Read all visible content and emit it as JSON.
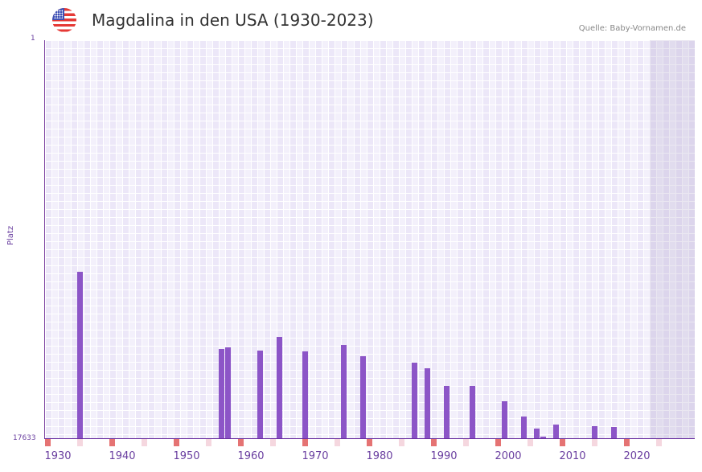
{
  "header": {
    "title": "Magdalina in den USA (1930-2023)",
    "source": "Quelle: Baby-Vornamen.de",
    "flag_icon": "us-flag-icon"
  },
  "colors": {
    "bar": "#8c55c7",
    "axis": "#6a2fa0",
    "decade_mark": "#e57373",
    "half_decade_mark": "#f5d7df",
    "grid_bg": "#f3f0fb"
  },
  "chart_data": {
    "type": "bar",
    "title": "Magdalina in den USA (1930-2023)",
    "xlabel": "",
    "ylabel": "Platz",
    "y_inverted": true,
    "ylim": [
      17633,
      1
    ],
    "yticks": [
      "1",
      "17633"
    ],
    "xticks": [
      "1930",
      "1940",
      "1950",
      "1960",
      "1970",
      "1980",
      "1990",
      "2000",
      "2010",
      "2020"
    ],
    "x_range": [
      1928,
      2028
    ],
    "grid": true,
    "categories": [
      1933,
      1955,
      1956,
      1961,
      1964,
      1968,
      1974,
      1977,
      1985,
      1987,
      1990,
      1994,
      1999,
      2002,
      2004,
      2005,
      2007,
      2013,
      2016
    ],
    "values": [
      10260,
      13679,
      13608,
      13750,
      13145,
      13786,
      13501,
      14000,
      14285,
      14534,
      15318,
      15318,
      15994,
      16671,
      17206,
      17562,
      17028,
      17099,
      17134
    ]
  },
  "axis": {
    "y_top_label": "1",
    "y_bottom_label": "17633",
    "y_title": "Platz"
  }
}
